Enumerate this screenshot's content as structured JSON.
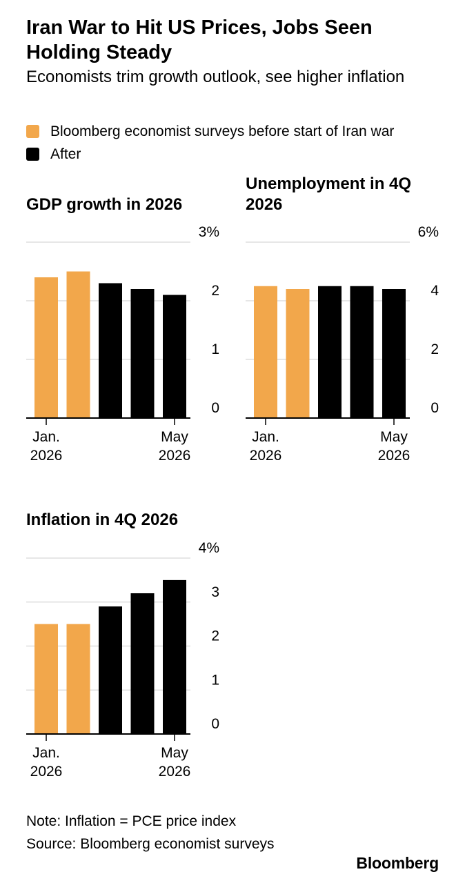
{
  "title": "Iran War to Hit US Prices, Jobs Seen Holding Steady",
  "subtitle": "Economists trim growth outlook, see higher inflation",
  "legend": [
    {
      "label": "Bloomberg economist surveys before start of Iran war",
      "color": "#F2A74B"
    },
    {
      "label": "After",
      "color": "#000000"
    }
  ],
  "colors": {
    "before": "#F2A74B",
    "after": "#000000",
    "grid": "#d6d6d6"
  },
  "chart_data": [
    {
      "type": "bar",
      "title": "GDP growth in 2026",
      "categories": [
        "Jan. 2026",
        "",
        "",
        "",
        "May 2026"
      ],
      "series_type": [
        "before",
        "before",
        "after",
        "after",
        "after"
      ],
      "values": [
        2.4,
        2.5,
        2.3,
        2.2,
        2.1
      ],
      "ylim": [
        0,
        3
      ],
      "yticks": [
        "0",
        "1",
        "2",
        "3%"
      ],
      "x_ticks": [
        {
          "top": "Jan.",
          "bottom": "2026",
          "index": 0
        },
        {
          "top": "May",
          "bottom": "2026",
          "index": 4
        }
      ]
    },
    {
      "type": "bar",
      "title": "Unemployment in 4Q 2026",
      "categories": [
        "Jan. 2026",
        "",
        "",
        "",
        "May 2026"
      ],
      "series_type": [
        "before",
        "before",
        "after",
        "after",
        "after"
      ],
      "values": [
        4.5,
        4.4,
        4.5,
        4.5,
        4.4
      ],
      "ylim": [
        0,
        6
      ],
      "yticks": [
        "0",
        "2",
        "4",
        "6%"
      ],
      "x_ticks": [
        {
          "top": "Jan.",
          "bottom": "2026",
          "index": 0
        },
        {
          "top": "May",
          "bottom": "2026",
          "index": 4
        }
      ]
    },
    {
      "type": "bar",
      "title": "Inflation in 4Q 2026",
      "categories": [
        "Jan. 2026",
        "",
        "",
        "",
        "May 2026"
      ],
      "series_type": [
        "before",
        "before",
        "after",
        "after",
        "after"
      ],
      "values": [
        2.5,
        2.5,
        2.9,
        3.2,
        3.5
      ],
      "ylim": [
        0,
        4
      ],
      "yticks": [
        "0",
        "1",
        "2",
        "3",
        "4%"
      ],
      "x_ticks": [
        {
          "top": "Jan.",
          "bottom": "2026",
          "index": 0
        },
        {
          "top": "May",
          "bottom": "2026",
          "index": 4
        }
      ]
    }
  ],
  "footer": {
    "note": "Note: Inflation = PCE price index",
    "source": "Source: Bloomberg economist surveys"
  },
  "brand": "Bloomberg"
}
